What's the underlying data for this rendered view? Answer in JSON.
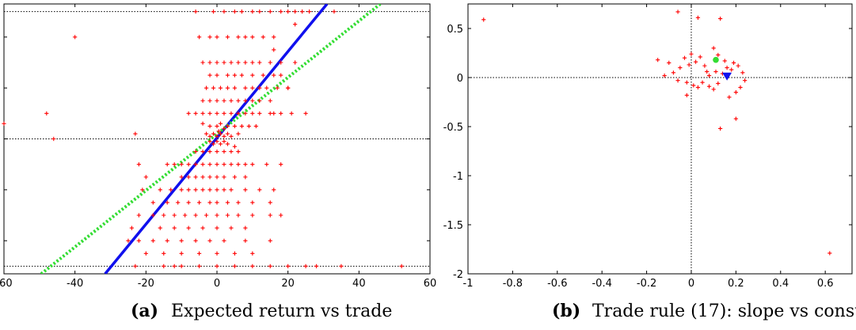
{
  "chart_data": [
    {
      "type": "scatter",
      "label": "(a)",
      "caption": "Expected return vs trade",
      "xlim": [
        -60,
        60
      ],
      "ylim": [
        -5.3,
        5.3
      ],
      "x_ticks": [
        -60,
        -40,
        -20,
        0,
        20,
        40,
        60
      ],
      "y_ticks": [
        -4,
        -2,
        0,
        2,
        4
      ],
      "grid": false,
      "reference_lines": {
        "horizontal": [
          5,
          0,
          -5
        ]
      },
      "fit_lines": [
        {
          "style": "solid",
          "color": "#1010ee",
          "x": [
            -31.5,
            31.0
          ],
          "y": [
            -5.3,
            5.3
          ]
        },
        {
          "style": "dotted",
          "color": "#33dd33",
          "x": [
            -49.5,
            46.0
          ],
          "y": [
            -5.3,
            5.3
          ]
        }
      ],
      "series": [
        {
          "marker": "+",
          "color": "#ff0000",
          "points": [
            [
              -40,
              4
            ],
            [
              -48,
              1
            ],
            [
              -46,
              0
            ],
            [
              -60,
              0.6
            ],
            [
              -23,
              0.2
            ],
            [
              -22,
              -1
            ],
            [
              -20,
              -1.5
            ],
            [
              -21,
              -2
            ],
            [
              -18,
              -2.5
            ],
            [
              -22,
              -3
            ],
            [
              -24,
              -3.5
            ],
            [
              -25,
              -4
            ],
            [
              -23,
              -5
            ],
            [
              -15,
              -5
            ],
            [
              -12,
              -5
            ],
            [
              -10,
              -5
            ],
            [
              -5,
              -5
            ],
            [
              0,
              -5
            ],
            [
              5,
              -5
            ],
            [
              10,
              -5
            ],
            [
              15,
              -5
            ],
            [
              20,
              -5
            ],
            [
              25,
              -5
            ],
            [
              28,
              -5
            ],
            [
              35,
              -5
            ],
            [
              52,
              -5
            ],
            [
              -6,
              5
            ],
            [
              -1,
              5
            ],
            [
              2,
              5
            ],
            [
              5,
              5
            ],
            [
              7,
              5
            ],
            [
              10,
              5
            ],
            [
              12,
              5
            ],
            [
              15,
              5
            ],
            [
              18,
              5
            ],
            [
              20,
              5
            ],
            [
              22,
              5
            ],
            [
              24,
              5
            ],
            [
              26,
              5
            ],
            [
              33,
              5
            ],
            [
              -5,
              4
            ],
            [
              -2,
              4
            ],
            [
              0,
              4
            ],
            [
              3,
              4
            ],
            [
              6,
              4
            ],
            [
              8,
              4
            ],
            [
              10,
              4
            ],
            [
              13,
              4
            ],
            [
              16,
              4
            ],
            [
              -4,
              3
            ],
            [
              -2,
              3
            ],
            [
              0,
              3
            ],
            [
              2,
              3
            ],
            [
              4,
              3
            ],
            [
              6,
              3
            ],
            [
              8,
              3
            ],
            [
              10,
              3
            ],
            [
              12,
              3
            ],
            [
              15,
              3
            ],
            [
              18,
              3
            ],
            [
              22,
              3
            ],
            [
              -2,
              2.5
            ],
            [
              0,
              2.5
            ],
            [
              3,
              2.5
            ],
            [
              5,
              2.5
            ],
            [
              7,
              2.5
            ],
            [
              10,
              2.5
            ],
            [
              13,
              2.5
            ],
            [
              16,
              2.5
            ],
            [
              -3,
              2
            ],
            [
              -1,
              2
            ],
            [
              1,
              2
            ],
            [
              3,
              2
            ],
            [
              5,
              2
            ],
            [
              8,
              2
            ],
            [
              10,
              2
            ],
            [
              12,
              2
            ],
            [
              14,
              2
            ],
            [
              17,
              2
            ],
            [
              20,
              2
            ],
            [
              -4,
              1.5
            ],
            [
              -2,
              1.5
            ],
            [
              0,
              1.5
            ],
            [
              2,
              1.5
            ],
            [
              4,
              1.5
            ],
            [
              6,
              1.5
            ],
            [
              8,
              1.5
            ],
            [
              10,
              1.5
            ],
            [
              12,
              1.5
            ],
            [
              15,
              1.5
            ],
            [
              -8,
              1
            ],
            [
              -6,
              1
            ],
            [
              -4,
              1
            ],
            [
              -2,
              1
            ],
            [
              0,
              1
            ],
            [
              2,
              1
            ],
            [
              4,
              1
            ],
            [
              6,
              1
            ],
            [
              8,
              1
            ],
            [
              10,
              1
            ],
            [
              12,
              1
            ],
            [
              15,
              1
            ],
            [
              18,
              1
            ],
            [
              21,
              1
            ],
            [
              25,
              1
            ],
            [
              -4,
              0.6
            ],
            [
              -2,
              0.5
            ],
            [
              0,
              0.5
            ],
            [
              1,
              0.6
            ],
            [
              2,
              0.4
            ],
            [
              3,
              0.5
            ],
            [
              5,
              0.5
            ],
            [
              7,
              0.5
            ],
            [
              9,
              0.5
            ],
            [
              11,
              0.5
            ],
            [
              -3,
              0.2
            ],
            [
              -2,
              0.1
            ],
            [
              -1,
              0.2
            ],
            [
              0,
              0.1
            ],
            [
              0.5,
              0.3
            ],
            [
              1,
              0.2
            ],
            [
              2,
              0.1
            ],
            [
              3,
              0.2
            ],
            [
              4,
              0.1
            ],
            [
              6,
              0.2
            ],
            [
              -2,
              -0.1
            ],
            [
              -1,
              -0.2
            ],
            [
              0,
              -0.1
            ],
            [
              1,
              -0.2
            ],
            [
              2,
              -0.1
            ],
            [
              3,
              -0.2
            ],
            [
              5,
              -0.3
            ],
            [
              -6,
              -0.5
            ],
            [
              -4,
              -0.5
            ],
            [
              -2,
              -0.5
            ],
            [
              0,
              -0.5
            ],
            [
              2,
              -0.5
            ],
            [
              4,
              -0.5
            ],
            [
              6,
              -0.5
            ],
            [
              -14,
              -1
            ],
            [
              -12,
              -1
            ],
            [
              -10,
              -1
            ],
            [
              -8,
              -1
            ],
            [
              -6,
              -1
            ],
            [
              -4,
              -1
            ],
            [
              -2,
              -1
            ],
            [
              0,
              -1
            ],
            [
              2,
              -1
            ],
            [
              4,
              -1
            ],
            [
              6,
              -1
            ],
            [
              8,
              -1
            ],
            [
              10,
              -1
            ],
            [
              14,
              -1
            ],
            [
              18,
              -1
            ],
            [
              -10,
              -1.5
            ],
            [
              -8,
              -1.5
            ],
            [
              -6,
              -1.5
            ],
            [
              -4,
              -1.5
            ],
            [
              -2,
              -1.5
            ],
            [
              0,
              -1.5
            ],
            [
              2,
              -1.5
            ],
            [
              5,
              -1.5
            ],
            [
              8,
              -1.5
            ],
            [
              -16,
              -2
            ],
            [
              -13,
              -2
            ],
            [
              -10,
              -2
            ],
            [
              -8,
              -2
            ],
            [
              -6,
              -2
            ],
            [
              -4,
              -2
            ],
            [
              -2,
              -2
            ],
            [
              0,
              -2
            ],
            [
              2,
              -2
            ],
            [
              4,
              -2
            ],
            [
              8,
              -2
            ],
            [
              12,
              -2
            ],
            [
              16,
              -2
            ],
            [
              -14,
              -2.5
            ],
            [
              -11,
              -2.5
            ],
            [
              -8,
              -2.5
            ],
            [
              -5,
              -2.5
            ],
            [
              -2,
              -2.5
            ],
            [
              0,
              -2.5
            ],
            [
              3,
              -2.5
            ],
            [
              6,
              -2.5
            ],
            [
              10,
              -2.5
            ],
            [
              15,
              -2.5
            ],
            [
              -18,
              -3
            ],
            [
              -15,
              -3
            ],
            [
              -12,
              -3
            ],
            [
              -9,
              -3
            ],
            [
              -6,
              -3
            ],
            [
              -3,
              -3
            ],
            [
              0,
              -3
            ],
            [
              3,
              -3
            ],
            [
              6,
              -3
            ],
            [
              10,
              -3
            ],
            [
              15,
              -3
            ],
            [
              18,
              -3
            ],
            [
              -16,
              -3.5
            ],
            [
              -12,
              -3.5
            ],
            [
              -8,
              -3.5
            ],
            [
              -4,
              -3.5
            ],
            [
              0,
              -3.5
            ],
            [
              4,
              -3.5
            ],
            [
              8,
              -3.5
            ],
            [
              -22,
              -4
            ],
            [
              -18,
              -4
            ],
            [
              -14,
              -4
            ],
            [
              -10,
              -4
            ],
            [
              -6,
              -4
            ],
            [
              -2,
              -4
            ],
            [
              2,
              -4
            ],
            [
              8,
              -4
            ],
            [
              15,
              -4
            ],
            [
              -20,
              -4.5
            ],
            [
              -15,
              -4.5
            ],
            [
              -10,
              -4.5
            ],
            [
              -5,
              -4.5
            ],
            [
              0,
              -4.5
            ],
            [
              5,
              -4.5
            ],
            [
              10,
              -4.5
            ],
            [
              16,
              3.5
            ],
            [
              18,
              2.5
            ],
            [
              20,
              2
            ],
            [
              16,
              1
            ],
            [
              22,
              4.5
            ]
          ]
        }
      ]
    },
    {
      "type": "scatter",
      "label": "(b)",
      "caption": "Trade rule (17): slope vs constant",
      "xlim": [
        -1,
        0.72
      ],
      "ylim": [
        -2,
        0.75
      ],
      "x_ticks": [
        -1,
        -0.8,
        -0.6,
        -0.4,
        -0.2,
        0,
        0.2,
        0.4,
        0.6
      ],
      "y_ticks": [
        0.5,
        0,
        -0.5,
        -1,
        -1.5,
        -2
      ],
      "grid": false,
      "reference_lines": {
        "horizontal": [
          0
        ],
        "vertical": [
          0
        ]
      },
      "series": [
        {
          "marker": "+",
          "color": "#ff0000",
          "points": [
            [
              -0.93,
              0.59
            ],
            [
              -0.06,
              0.67
            ],
            [
              0.03,
              0.61
            ],
            [
              0.13,
              0.6
            ],
            [
              0.62,
              -1.79
            ],
            [
              -0.15,
              0.18
            ],
            [
              -0.1,
              0.15
            ],
            [
              -0.08,
              0.05
            ],
            [
              -0.05,
              0.1
            ],
            [
              -0.12,
              0.02
            ],
            [
              -0.03,
              0.2
            ],
            [
              -0.01,
              0.13
            ],
            [
              0.0,
              0.24
            ],
            [
              0.02,
              0.16
            ],
            [
              0.04,
              0.21
            ],
            [
              0.06,
              0.12
            ],
            [
              0.07,
              0.06
            ],
            [
              -0.06,
              -0.03
            ],
            [
              -0.02,
              -0.05
            ],
            [
              0.01,
              -0.08
            ],
            [
              0.03,
              -0.1
            ],
            [
              0.05,
              -0.05
            ],
            [
              0.08,
              -0.09
            ],
            [
              0.1,
              -0.12
            ],
            [
              0.12,
              -0.06
            ],
            [
              0.14,
              0.04
            ],
            [
              0.16,
              0.1
            ],
            [
              0.18,
              0.08
            ],
            [
              0.2,
              -0.15
            ],
            [
              0.22,
              -0.1
            ],
            [
              0.24,
              -0.03
            ],
            [
              0.23,
              0.05
            ],
            [
              0.1,
              0.3
            ],
            [
              0.12,
              0.23
            ],
            [
              0.15,
              0.17
            ],
            [
              0.19,
              0.15
            ],
            [
              0.21,
              0.12
            ],
            [
              0.2,
              -0.42
            ],
            [
              0.13,
              -0.52
            ],
            [
              -0.02,
              -0.18
            ],
            [
              0.08,
              0.02
            ],
            [
              0.11,
              0.06
            ],
            [
              0.17,
              -0.2
            ]
          ]
        },
        {
          "marker": "circle",
          "color": "#33dd33",
          "points": [
            [
              0.11,
              0.18
            ]
          ]
        },
        {
          "marker": "triangle-down",
          "color": "#1010ee",
          "points": [
            [
              0.16,
              0.01
            ]
          ]
        }
      ]
    }
  ]
}
